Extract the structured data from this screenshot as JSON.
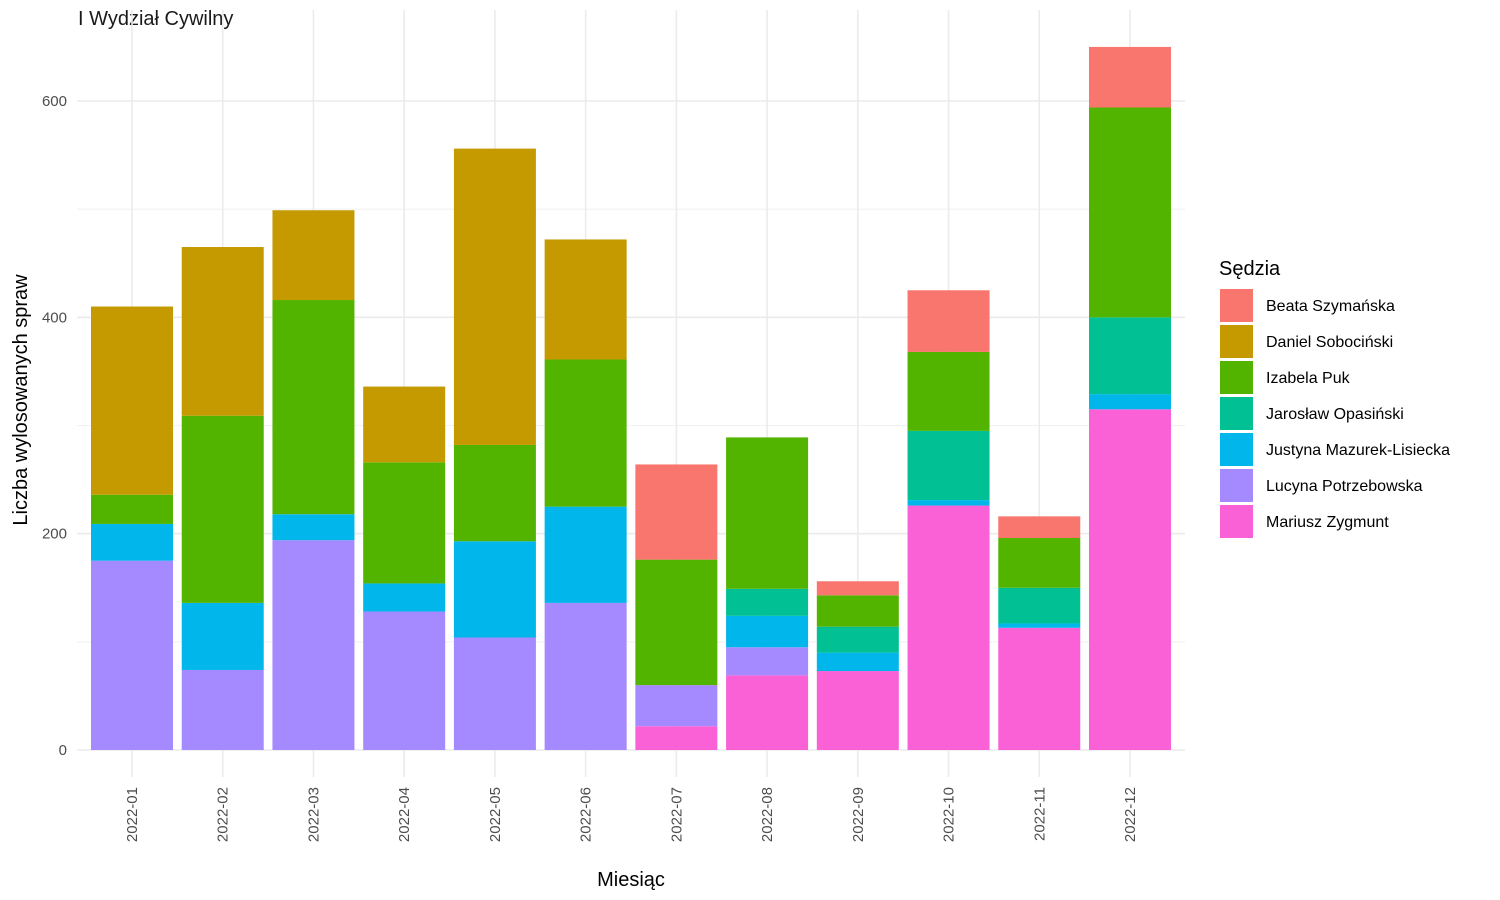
{
  "chart_data": {
    "type": "bar",
    "stacked": true,
    "title": "I Wydział Cywilny",
    "xlabel": "Miesiąc",
    "ylabel": "Liczba wylosowanych spraw",
    "ylim": [
      0,
      650
    ],
    "yticks": [
      0,
      200,
      400,
      600
    ],
    "grid": true,
    "legend_position": "right",
    "legend_title": "Sędzia",
    "categories": [
      "2022-01",
      "2022-02",
      "2022-03",
      "2022-04",
      "2022-05",
      "2022-06",
      "2022-07",
      "2022-08",
      "2022-09",
      "2022-10",
      "2022-11",
      "2022-12"
    ],
    "legend": [
      {
        "name": "Beata Szymańska",
        "color": "#F8766D"
      },
      {
        "name": "Daniel Sobociński",
        "color": "#C49A00"
      },
      {
        "name": "Izabela Puk",
        "color": "#53B400"
      },
      {
        "name": "Jarosław Opasiński",
        "color": "#00C094"
      },
      {
        "name": "Justyna Mazurek-Lisiecka",
        "color": "#00B6EB"
      },
      {
        "name": "Lucyna Potrzebowska",
        "color": "#A58AFF"
      },
      {
        "name": "Mariusz Zygmunt",
        "color": "#FB61D7"
      }
    ],
    "series": [
      {
        "name": "Mariusz Zygmunt",
        "color": "#FB61D7",
        "values": [
          0,
          0,
          0,
          0,
          0,
          0,
          22,
          69,
          73,
          226,
          113,
          315
        ]
      },
      {
        "name": "Lucyna Potrzebowska",
        "color": "#A58AFF",
        "values": [
          175,
          74,
          194,
          128,
          104,
          136,
          38,
          26,
          0,
          0,
          0,
          0
        ]
      },
      {
        "name": "Justyna Mazurek-Lisiecka",
        "color": "#00B6EB",
        "values": [
          34,
          62,
          24,
          26,
          89,
          89,
          0,
          29,
          17,
          5,
          4,
          14
        ]
      },
      {
        "name": "Jarosław Opasiński",
        "color": "#00C094",
        "values": [
          0,
          0,
          0,
          0,
          0,
          0,
          0,
          25,
          24,
          64,
          33,
          71
        ]
      },
      {
        "name": "Izabela Puk",
        "color": "#53B400",
        "values": [
          27,
          173,
          198,
          112,
          89,
          136,
          116,
          140,
          29,
          73,
          46,
          194
        ]
      },
      {
        "name": "Daniel Sobociński",
        "color": "#C49A00",
        "values": [
          174,
          156,
          83,
          70,
          274,
          111,
          0,
          0,
          0,
          0,
          0,
          0
        ]
      },
      {
        "name": "Beata Szymańska",
        "color": "#F8766D",
        "values": [
          0,
          0,
          0,
          0,
          0,
          0,
          88,
          0,
          13,
          57,
          20,
          56
        ]
      }
    ]
  }
}
